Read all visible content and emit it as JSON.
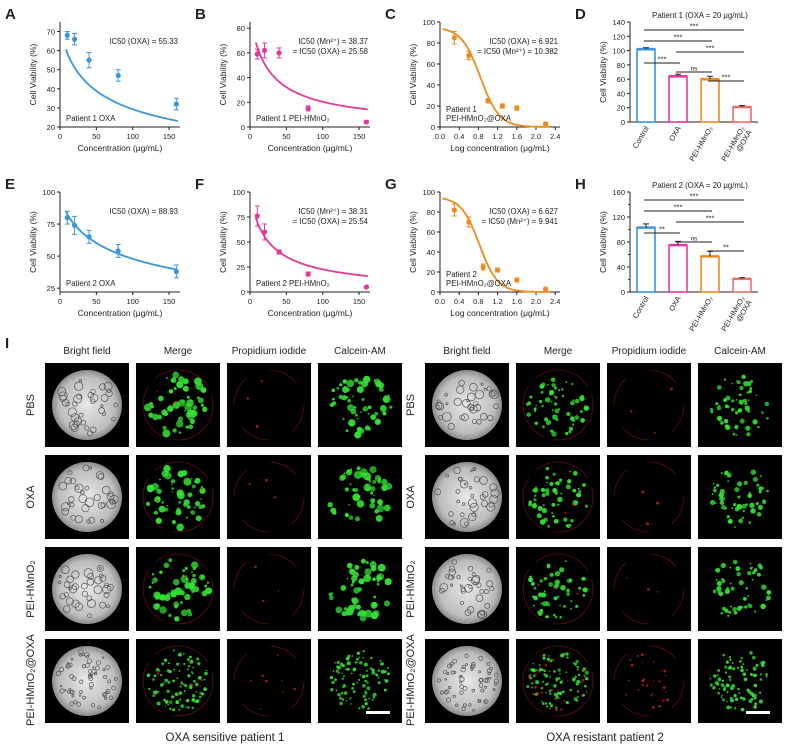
{
  "panel_letters": [
    "A",
    "B",
    "C",
    "D",
    "E",
    "F",
    "G",
    "H"
  ],
  "panel_I_letter": "I",
  "chart_data": [
    {
      "id": "A",
      "type": "scatter",
      "xlabel": "Concentration (μg/mL)",
      "ylabel": "Cell Viability (%)",
      "xlim": [
        0,
        165
      ],
      "ylim": [
        20,
        75
      ],
      "xticks": [
        0,
        50,
        100,
        150
      ],
      "yticks": [
        20,
        30,
        40,
        50,
        60,
        70
      ],
      "color": "#3a95de",
      "points": [
        [
          10,
          68
        ],
        [
          20,
          66
        ],
        [
          40,
          55
        ],
        [
          80,
          47
        ],
        [
          160,
          32
        ]
      ],
      "errors": [
        2,
        3,
        4,
        3,
        3
      ],
      "curve": {
        "top": 75,
        "ic50": 55.33,
        "hill": 0.75,
        "bottom": 0
      },
      "annotation": [
        "IC50 (OXA) = 55.33"
      ],
      "legend_text": "Patient 1    OXA",
      "log_x": false
    },
    {
      "id": "B",
      "type": "scatter",
      "xlabel": "Concentration (μg/mL)",
      "ylabel": "Cell Viability (%)",
      "xlim": [
        0,
        165
      ],
      "ylim": [
        0,
        85
      ],
      "xticks": [
        0,
        50,
        100,
        150
      ],
      "yticks": [
        0,
        20,
        40,
        60,
        80
      ],
      "color": "#e2399a",
      "points": [
        [
          10,
          59
        ],
        [
          20,
          62
        ],
        [
          40,
          60
        ],
        [
          80,
          15
        ],
        [
          160,
          4
        ]
      ],
      "errors": [
        4,
        6,
        4,
        2,
        1
      ],
      "curve": {
        "top": 92,
        "ic50": 25.58,
        "hill": 0.92,
        "bottom": 0
      },
      "annotation": [
        "IC50 (Mn²⁺) = 38.37",
        "= IC50 (OXA) = 25.58"
      ],
      "legend_text": "Patient 1    PEI-HMnO₂",
      "log_x": false
    },
    {
      "id": "C",
      "type": "scatter",
      "xlabel": "Log concentration (μg/mL)",
      "ylabel": "Cell Viability (%)",
      "xlim": [
        0,
        2.5
      ],
      "ylim": [
        0,
        100
      ],
      "xticks": [
        0.0,
        0.4,
        0.8,
        1.2,
        1.6,
        2.0,
        2.4
      ],
      "yticks": [
        0,
        20,
        40,
        60,
        80,
        100
      ],
      "color": "#ee8a1e",
      "points": [
        [
          0.3,
          85
        ],
        [
          0.6,
          68
        ],
        [
          1.0,
          25
        ],
        [
          1.3,
          20
        ],
        [
          1.6,
          18
        ],
        [
          2.2,
          3
        ]
      ],
      "errors": [
        6,
        4,
        2,
        2,
        2,
        1
      ],
      "curve": {
        "top": 95,
        "ic50": 6.921,
        "hill": 2.2,
        "bottom": 0
      },
      "annotation": [
        "IC50 (OXA) = 6.921",
        "= IC50 (Mn²⁺) = 10.382"
      ],
      "legend_text": "Patient 1\nPEI-HMnO₂@OXA",
      "log_x": true
    },
    {
      "id": "D",
      "type": "bar",
      "ylabel": "Cell Viability (%)",
      "ylim": [
        0,
        140
      ],
      "yticks": [
        0,
        20,
        40,
        60,
        80,
        100,
        120,
        140
      ],
      "categories": [
        "Control",
        "OXA",
        "PEI-HMnO₂",
        "PEI-HMnO₂\n@OXA"
      ],
      "values": [
        102,
        64,
        60,
        21
      ],
      "errors": [
        2,
        3,
        4,
        2
      ],
      "colors": [
        "#3a95de",
        "#e2399a",
        "#ee8a1e",
        "#ee6b6b"
      ],
      "title": "Patient 1 (OXA = 20 μg/mL)",
      "significance": [
        {
          "a": 0,
          "b": 3,
          "label": "***"
        },
        {
          "a": 0,
          "b": 2,
          "label": "***"
        },
        {
          "a": 1,
          "b": 3,
          "label": "***"
        },
        {
          "a": 0,
          "b": 1,
          "label": "***"
        },
        {
          "a": 1,
          "b": 2,
          "label": "ns"
        },
        {
          "a": 2,
          "b": 3,
          "label": "***"
        }
      ]
    },
    {
      "id": "E",
      "type": "scatter",
      "xlabel": "Concentration (μg/mL)",
      "ylabel": "Cell Viability (%)",
      "xlim": [
        0,
        165
      ],
      "ylim": [
        22,
        100
      ],
      "xticks": [
        0,
        50,
        100,
        150
      ],
      "yticks": [
        25,
        50,
        75,
        100
      ],
      "color": "#3a95de",
      "points": [
        [
          10,
          80
        ],
        [
          20,
          74
        ],
        [
          40,
          65
        ],
        [
          80,
          54
        ],
        [
          160,
          38
        ]
      ],
      "errors": [
        5,
        7,
        5,
        5,
        5
      ],
      "curve": {
        "top": 100,
        "ic50": 88.93,
        "hill": 0.72,
        "bottom": 0
      },
      "annotation": [
        "IC50 (OXA) = 88.93"
      ],
      "legend_text": "Patient 2    OXA",
      "log_x": false
    },
    {
      "id": "F",
      "type": "scatter",
      "xlabel": "Concentration (μg/mL)",
      "ylabel": "Cell Viability (%)",
      "xlim": [
        0,
        165
      ],
      "ylim": [
        0,
        100
      ],
      "xticks": [
        0,
        50,
        100,
        150
      ],
      "yticks": [
        0,
        25,
        50,
        75,
        100
      ],
      "color": "#e2399a",
      "points": [
        [
          10,
          76
        ],
        [
          20,
          60
        ],
        [
          40,
          40
        ],
        [
          80,
          18
        ],
        [
          160,
          5
        ]
      ],
      "errors": [
        10,
        8,
        2,
        2,
        1
      ],
      "curve": {
        "top": 100,
        "ic50": 25.54,
        "hill": 0.9,
        "bottom": 0
      },
      "annotation": [
        "IC50 (Mn²⁺) = 38.31",
        "= IC50 (OXA) = 25.54"
      ],
      "legend_text": "Patient 2    PEI-HMnO₂",
      "log_x": false
    },
    {
      "id": "G",
      "type": "scatter",
      "xlabel": "Log concentration (μg/mL)",
      "ylabel": "Cell Viability (%)",
      "xlim": [
        0,
        2.5
      ],
      "ylim": [
        0,
        100
      ],
      "xticks": [
        0.0,
        0.4,
        0.8,
        1.2,
        1.6,
        2.0,
        2.4
      ],
      "yticks": [
        0,
        20,
        40,
        60,
        80,
        100
      ],
      "color": "#ee8a1e",
      "points": [
        [
          0.3,
          82
        ],
        [
          0.6,
          70
        ],
        [
          0.9,
          25
        ],
        [
          1.2,
          22
        ],
        [
          1.6,
          12
        ],
        [
          2.2,
          3
        ]
      ],
      "errors": [
        6,
        5,
        3,
        2,
        2,
        1
      ],
      "curve": {
        "top": 95,
        "ic50": 6.627,
        "hill": 2.3,
        "bottom": 0
      },
      "annotation": [
        "IC50 (OXA) = 6.627",
        "= IC50 (Mn²⁺) = 9.941"
      ],
      "legend_text": "Patient 2\nPEI-HMnO₂@OXA",
      "log_x": true
    },
    {
      "id": "H",
      "type": "bar",
      "ylabel": "Cell Viability (%)",
      "ylim": [
        0,
        160
      ],
      "yticks": [
        0,
        40,
        80,
        120,
        160
      ],
      "yticks_minor": [
        20,
        60,
        100,
        140
      ],
      "categories": [
        "Control",
        "OXA",
        "PEI-HMnO₂",
        "PEI-HMnO₂\n@OXA"
      ],
      "values": [
        103,
        75,
        57,
        21
      ],
      "errors": [
        6,
        6,
        8,
        2
      ],
      "colors": [
        "#3a95de",
        "#e2399a",
        "#ee8a1e",
        "#ee6b6b"
      ],
      "title": "Patient 2 (OXA = 20 μg/mL)",
      "significance": [
        {
          "a": 0,
          "b": 3,
          "label": "***"
        },
        {
          "a": 0,
          "b": 2,
          "label": "***"
        },
        {
          "a": 1,
          "b": 3,
          "label": "***"
        },
        {
          "a": 0,
          "b": 1,
          "label": "**"
        },
        {
          "a": 1,
          "b": 2,
          "label": "ns"
        },
        {
          "a": 2,
          "b": 3,
          "label": "**"
        }
      ]
    }
  ],
  "microscopy": {
    "column_titles": [
      "Bright field",
      "Merge",
      "Propidium iodide",
      "Calcein-AM"
    ],
    "row_labels": [
      "PBS",
      "OXA",
      "PEI-HMnO₂",
      "PEI-HMnO₂@OXA"
    ],
    "group_captions": [
      "OXA sensitive patient 1",
      "OXA resistant patient 2"
    ],
    "channel_colors": {
      "bright": "#d6d6d6",
      "live": "#33e033",
      "dead": "#e02020"
    }
  }
}
